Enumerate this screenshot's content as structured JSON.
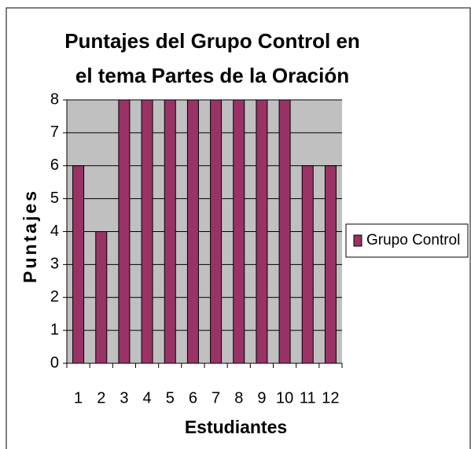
{
  "chart_data": {
    "type": "bar",
    "title": "Puntajes del Grupo Control en el tema Partes de la Oración",
    "xlabel": "Estudiantes",
    "ylabel": "Puntajes",
    "categories": [
      "1",
      "2",
      "3",
      "4",
      "5",
      "6",
      "7",
      "8",
      "9",
      "10",
      "11",
      "12"
    ],
    "series": [
      {
        "name": "Grupo Control",
        "color": "#993366",
        "values": [
          6,
          4,
          8,
          8,
          8,
          8,
          8,
          8,
          8,
          8,
          6,
          6
        ]
      }
    ],
    "ylim": [
      0,
      8
    ],
    "yticks": [
      0,
      1,
      2,
      3,
      4,
      5,
      6,
      7,
      8
    ],
    "grid": true,
    "legend": "right"
  }
}
